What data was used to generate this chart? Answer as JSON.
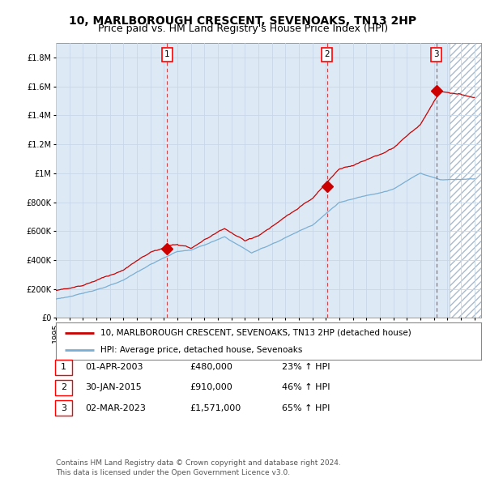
{
  "title": "10, MARLBOROUGH CRESCENT, SEVENOAKS, TN13 2HP",
  "subtitle": "Price paid vs. HM Land Registry's House Price Index (HPI)",
  "ylabel_ticks": [
    "£0",
    "£200K",
    "£400K",
    "£600K",
    "£800K",
    "£1M",
    "£1.2M",
    "£1.4M",
    "£1.6M",
    "£1.8M"
  ],
  "ytick_vals": [
    0,
    200000,
    400000,
    600000,
    800000,
    1000000,
    1200000,
    1400000,
    1600000,
    1800000
  ],
  "ylim": [
    0,
    1900000
  ],
  "xlim_start": 1995.0,
  "xlim_end": 2026.5,
  "hatch_start": 2024.17,
  "sale_dates": [
    2003.25,
    2015.08,
    2023.17
  ],
  "sale_prices": [
    480000,
    910000,
    1571000
  ],
  "sale_labels": [
    "1",
    "2",
    "3"
  ],
  "red_line_color": "#cc0000",
  "blue_line_color": "#7aaed4",
  "dashed_line_color": "#cc3333",
  "grid_color": "#c8d8e8",
  "bg_color": "#ddeaf5",
  "hatch_color": "#aabbcc",
  "legend_entries": [
    "10, MARLBOROUGH CRESCENT, SEVENOAKS, TN13 2HP (detached house)",
    "HPI: Average price, detached house, Sevenoaks"
  ],
  "table_rows": [
    [
      "1",
      "01-APR-2003",
      "£480,000",
      "23% ↑ HPI"
    ],
    [
      "2",
      "30-JAN-2015",
      "£910,000",
      "46% ↑ HPI"
    ],
    [
      "3",
      "02-MAR-2023",
      "£1,571,000",
      "65% ↑ HPI"
    ]
  ],
  "copyright_text": "Contains HM Land Registry data © Crown copyright and database right 2024.\nThis data is licensed under the Open Government Licence v3.0.",
  "title_fontsize": 10,
  "subtitle_fontsize": 9,
  "tick_fontsize": 7,
  "legend_fontsize": 7.5,
  "table_fontsize": 8,
  "copyright_fontsize": 6.5
}
